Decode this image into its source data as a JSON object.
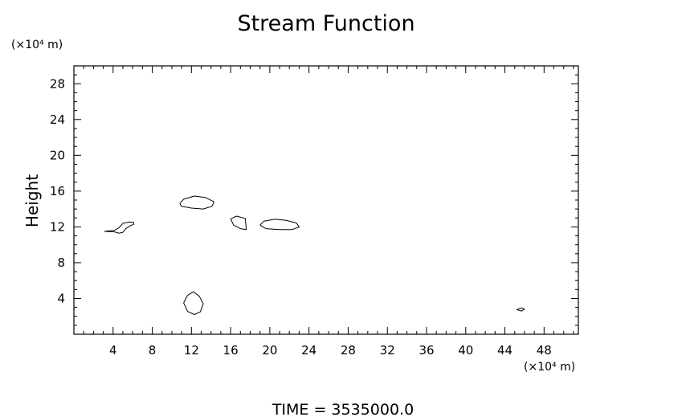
{
  "chart_data": {
    "type": "contour",
    "title": "Stream Function",
    "xlabel": "",
    "ylabel": "Height",
    "x_unit_label": "(×10⁴ m)",
    "y_unit_label": "(×10⁴ m)",
    "xlim": [
      0,
      51.5
    ],
    "ylim": [
      0,
      30
    ],
    "x_major_ticks": [
      4,
      8,
      12,
      16,
      20,
      24,
      28,
      32,
      36,
      40,
      44,
      48
    ],
    "x_tick_labels": [
      "4",
      "8",
      "12",
      "16",
      "20",
      "24",
      "28",
      "32",
      "36",
      "40",
      "44",
      "48"
    ],
    "y_major_ticks": [
      4,
      8,
      12,
      16,
      20,
      24,
      28
    ],
    "y_tick_labels": [
      "4",
      "8",
      "12",
      "16",
      "20",
      "24",
      "28"
    ],
    "minor_tick_step": 1,
    "grid": false,
    "footer": "TIME = 3535000.0",
    "contours": [
      {
        "name": "contour-left-tail",
        "points": [
          [
            3.1,
            11.5
          ],
          [
            3.6,
            11.48
          ],
          [
            4.1,
            11.45
          ],
          [
            4.6,
            11.3
          ],
          [
            5.0,
            11.4
          ],
          [
            5.3,
            11.8
          ],
          [
            5.7,
            12.1
          ],
          [
            6.1,
            12.3
          ],
          [
            6.1,
            12.5
          ],
          [
            5.7,
            12.55
          ],
          [
            5.0,
            12.4
          ],
          [
            4.6,
            11.9
          ],
          [
            4.1,
            11.6
          ],
          [
            3.6,
            11.55
          ],
          [
            3.1,
            11.5
          ]
        ]
      },
      {
        "name": "contour-mid-upper",
        "points": [
          [
            10.8,
            14.6
          ],
          [
            11.2,
            15.1
          ],
          [
            12.3,
            15.45
          ],
          [
            13.4,
            15.3
          ],
          [
            14.3,
            14.8
          ],
          [
            14.1,
            14.3
          ],
          [
            13.2,
            14.0
          ],
          [
            12.0,
            14.1
          ],
          [
            11.0,
            14.3
          ],
          [
            10.8,
            14.6
          ]
        ]
      },
      {
        "name": "contour-16",
        "points": [
          [
            16.0,
            12.9
          ],
          [
            16.6,
            13.2
          ],
          [
            17.5,
            12.95
          ],
          [
            17.6,
            11.7
          ],
          [
            17.0,
            11.8
          ],
          [
            16.3,
            12.2
          ],
          [
            16.0,
            12.9
          ]
        ]
      },
      {
        "name": "contour-20",
        "points": [
          [
            19.0,
            12.2
          ],
          [
            19.4,
            12.65
          ],
          [
            20.5,
            12.85
          ],
          [
            21.6,
            12.75
          ],
          [
            22.7,
            12.45
          ],
          [
            23.0,
            12.0
          ],
          [
            22.3,
            11.7
          ],
          [
            21.0,
            11.7
          ],
          [
            19.6,
            11.8
          ],
          [
            19.0,
            12.2
          ]
        ]
      },
      {
        "name": "contour-low",
        "points": [
          [
            11.2,
            3.5
          ],
          [
            11.6,
            4.35
          ],
          [
            12.2,
            4.75
          ],
          [
            12.8,
            4.25
          ],
          [
            13.2,
            3.4
          ],
          [
            12.9,
            2.5
          ],
          [
            12.3,
            2.2
          ],
          [
            11.6,
            2.55
          ],
          [
            11.2,
            3.5
          ]
        ]
      },
      {
        "name": "contour-right-small",
        "points": [
          [
            45.2,
            2.75
          ],
          [
            45.7,
            2.95
          ],
          [
            46.0,
            2.8
          ],
          [
            45.7,
            2.6
          ],
          [
            45.2,
            2.75
          ]
        ]
      }
    ]
  }
}
